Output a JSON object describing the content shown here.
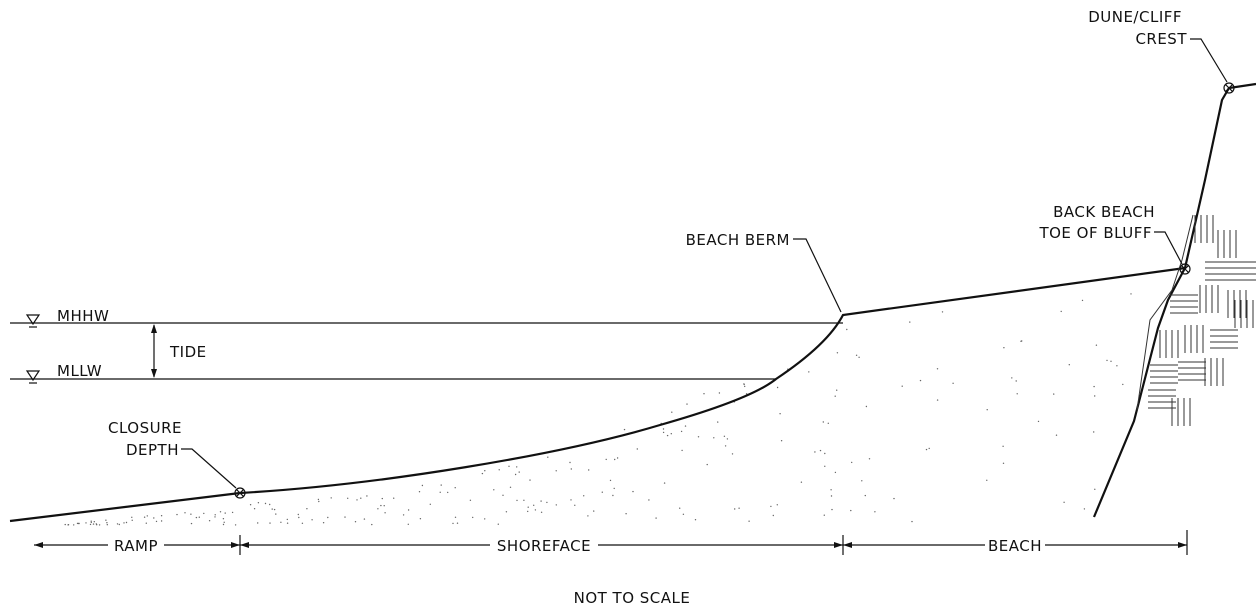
{
  "labels": {
    "dune_cliff_crest_line1": "DUNE/CLIFF",
    "dune_cliff_crest_line2": "CREST",
    "back_beach_line1": "BACK BEACH",
    "back_beach_line2": "TOE OF BLUFF",
    "beach_berm": "BEACH BERM",
    "mhhw": "MHHW",
    "mllw": "MLLW",
    "tide": "TIDE",
    "closure_line1": "CLOSURE",
    "closure_line2": "DEPTH",
    "ramp": "RAMP",
    "shoreface": "SHOREFACE",
    "beach": "BEACH",
    "scale_note": "NOT TO SCALE"
  }
}
